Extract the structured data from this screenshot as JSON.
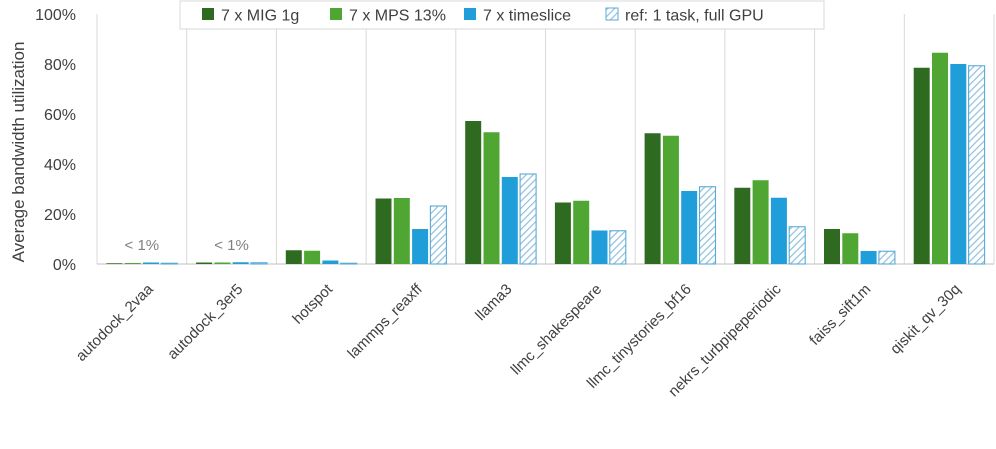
{
  "chart_data": {
    "type": "bar",
    "ylabel": "Average bandwidth utilization",
    "ylim": [
      0,
      100
    ],
    "y_ticks": [
      "0%",
      "20%",
      "40%",
      "60%",
      "80%",
      "100%"
    ],
    "categories": [
      "autodock_2vaa",
      "autodock_3er5",
      "hotspot",
      "lammps_reaxff",
      "llama3",
      "llmc_shakespeare",
      "llmc_tinystories_bf16",
      "nekrs_turbpipeperiodic",
      "faiss_sift1m",
      "qiskit_qv_30q"
    ],
    "series": [
      {
        "name": "7 x MIG 1g",
        "color": "#2e6b21",
        "pattern": false,
        "values": [
          0.3,
          0.6,
          5.5,
          26.2,
          57.2,
          24.6,
          52.3,
          30.5,
          14.0,
          78.5
        ]
      },
      {
        "name": "7 x MPS 13%",
        "color": "#4fa633",
        "pattern": false,
        "values": [
          0.4,
          0.6,
          5.3,
          26.4,
          52.7,
          25.3,
          51.3,
          33.5,
          12.3,
          84.5
        ]
      },
      {
        "name": "7 x timeslice",
        "color": "#1f9ed9",
        "pattern": false,
        "values": [
          0.6,
          0.7,
          1.4,
          14.0,
          34.8,
          13.4,
          29.2,
          26.5,
          5.2,
          80.0
        ]
      },
      {
        "name": "ref: 1 task, full GPU",
        "color": "#9dc7df",
        "pattern": true,
        "values": [
          0.3,
          0.5,
          0.3,
          23.2,
          36.0,
          13.3,
          30.9,
          14.9,
          5.1,
          79.3
        ]
      }
    ],
    "annotations": [
      {
        "category": "autodock_2vaa",
        "text": "< 1%"
      },
      {
        "category": "autodock_3er5",
        "text": "< 1%"
      }
    ],
    "legend_position": "top-right",
    "grid": {
      "vertical_category_separators": true
    }
  }
}
